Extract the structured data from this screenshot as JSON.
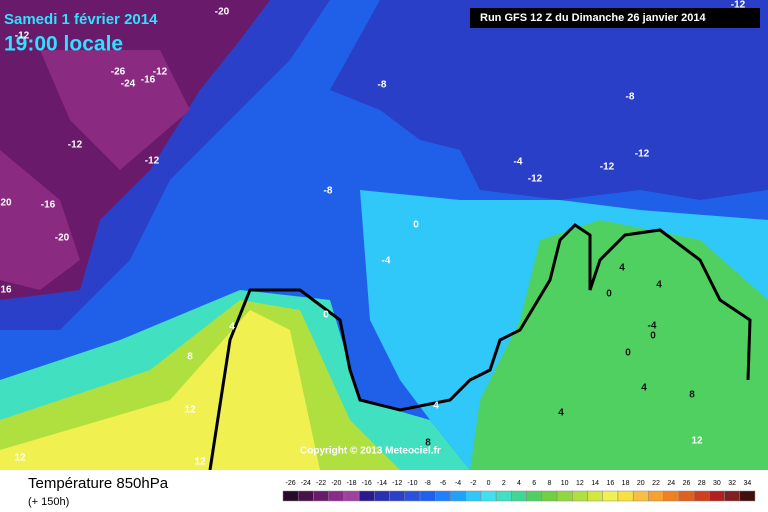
{
  "header": {
    "date": "Samedi 1 février 2014",
    "time": "19:00 locale",
    "run": "Run GFS 12 Z du Dimanche 26 janvier 2014"
  },
  "map": {
    "contour_labels": [
      -20,
      -12,
      -12,
      -12,
      -26,
      -16,
      -24,
      -8,
      -8,
      -12,
      -12,
      -12,
      -12,
      -12,
      -4,
      -8,
      20,
      -16,
      -20,
      0,
      -4,
      16,
      0,
      4,
      4,
      4,
      0,
      -4,
      0,
      8,
      0,
      4,
      8,
      12,
      4,
      4,
      12,
      12,
      12,
      8
    ],
    "copyright": "Copyright © 2013 Meteociel.fr"
  },
  "legend": {
    "title": "Température 850hPa",
    "subtitle": "(+ 150h)",
    "scale": [
      -26,
      -24,
      -22,
      -20,
      -18,
      -16,
      -14,
      -12,
      -10,
      -8,
      -6,
      -4,
      -2,
      0,
      2,
      4,
      6,
      8,
      10,
      12,
      14,
      16,
      18,
      20,
      22,
      24,
      26,
      28,
      30,
      32,
      34
    ],
    "colors": [
      "#2a0a2a",
      "#4a104a",
      "#6a1a6a",
      "#8a2a8a",
      "#a040a0",
      "#2a1a90",
      "#2a30b0",
      "#2a40c8",
      "#2a50e0",
      "#2060f0",
      "#2080ff",
      "#20a0ff",
      "#30c8f8",
      "#40e0f0",
      "#40e0c0",
      "#40d890",
      "#50d060",
      "#70d040",
      "#90d840",
      "#b0e040",
      "#d0e840",
      "#f0f050",
      "#f8e040",
      "#f8c040",
      "#f8a030",
      "#f08020",
      "#e06020",
      "#d04020",
      "#b02020",
      "#802020",
      "#401010"
    ]
  }
}
